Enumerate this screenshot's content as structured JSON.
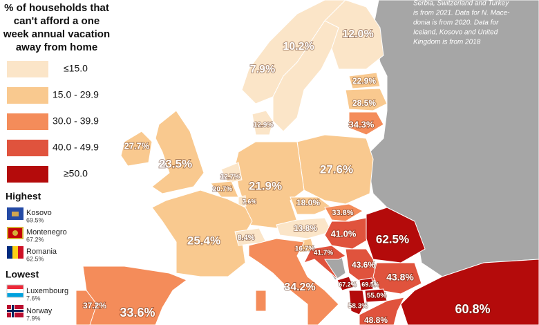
{
  "title_lines": [
    "% of households that",
    "can't afford a one",
    "week annual vacation",
    "away from home"
  ],
  "legend": [
    {
      "label": "≤15.0",
      "color": "#fbe5c8"
    },
    {
      "label": "15.0 - 29.9",
      "color": "#f9c98f"
    },
    {
      "label": "30.0 - 39.9",
      "color": "#f48c5a"
    },
    {
      "label": "40.0 - 49.9",
      "color": "#e0533d"
    },
    {
      "label": "≥50.0",
      "color": "#b40b0b"
    }
  ],
  "highest": {
    "heading": "Highest",
    "items": [
      {
        "name": "Kosovo",
        "value": "69.5%"
      },
      {
        "name": "Montenegro",
        "value": "67.2%"
      },
      {
        "name": "Romania",
        "value": "62.5%"
      }
    ]
  },
  "lowest": {
    "heading": "Lowest",
    "items": [
      {
        "name": "Luxembourg",
        "value": "7.6%"
      },
      {
        "name": "Norway",
        "value": "7.9%"
      }
    ]
  },
  "note_lines": [
    "Serbia, Switzerland and Turkey",
    "is from 2021. Data for N. Mace-",
    "donia is from 2020. Data for",
    "Iceland, Kosovo and United",
    "Kingdom is from 2018"
  ],
  "regions": [
    {
      "value": 10.2,
      "label": "10.2%",
      "bin": 0
    },
    {
      "value": 12.0,
      "label": "12.0%",
      "bin": 0
    },
    {
      "value": 7.9,
      "label": "7.9%",
      "bin": 0
    },
    {
      "value": 22.9,
      "label": "22.9%",
      "bin": 1
    },
    {
      "value": 28.5,
      "label": "28.5%",
      "bin": 1
    },
    {
      "value": 34.3,
      "label": "34.3%",
      "bin": 2
    },
    {
      "value": 12.9,
      "label": "12.9%",
      "bin": 0
    },
    {
      "value": 27.7,
      "label": "27.7%",
      "bin": 1
    },
    {
      "value": 23.5,
      "label": "23.5%",
      "bin": 1
    },
    {
      "value": 27.6,
      "label": "27.6%",
      "bin": 1
    },
    {
      "value": 21.9,
      "label": "21.9%",
      "bin": 1
    },
    {
      "value": 12.7,
      "label": "12.7%",
      "bin": 0
    },
    {
      "value": 20.7,
      "label": "20.7%",
      "bin": 1
    },
    {
      "value": 7.6,
      "label": "7.6%",
      "bin": 0
    },
    {
      "value": 25.4,
      "label": "25.4%",
      "bin": 1
    },
    {
      "value": 8.4,
      "label": "8.4%",
      "bin": 0
    },
    {
      "value": 18.0,
      "label": "18.0%",
      "bin": 1
    },
    {
      "value": 33.8,
      "label": "33.8%",
      "bin": 2
    },
    {
      "value": 13.8,
      "label": "13.8%",
      "bin": 0
    },
    {
      "value": 41.0,
      "label": "41.0%",
      "bin": 3
    },
    {
      "value": 62.5,
      "label": "62.5%",
      "bin": 4
    },
    {
      "value": 16.7,
      "label": "16.7%",
      "bin": 1
    },
    {
      "value": 41.7,
      "label": "41.7%",
      "bin": 3
    },
    {
      "value": 43.6,
      "label": "43.6%",
      "bin": 3
    },
    {
      "value": 43.8,
      "label": "43.8%",
      "bin": 3
    },
    {
      "value": 34.2,
      "label": "34.2%",
      "bin": 2
    },
    {
      "value": 67.2,
      "label": "67.2%",
      "bin": 4
    },
    {
      "value": 69.5,
      "label": "69.5%",
      "bin": 4
    },
    {
      "value": 55.0,
      "label": "55.0%",
      "bin": 4
    },
    {
      "value": 58.3,
      "label": "58.3%",
      "bin": 4
    },
    {
      "value": 48.8,
      "label": "48.8%",
      "bin": 3
    },
    {
      "value": 37.2,
      "label": "37.2%",
      "bin": 2
    },
    {
      "value": 33.6,
      "label": "33.6%",
      "bin": 2
    },
    {
      "value": 60.8,
      "label": "60.8%",
      "bin": 4
    }
  ]
}
